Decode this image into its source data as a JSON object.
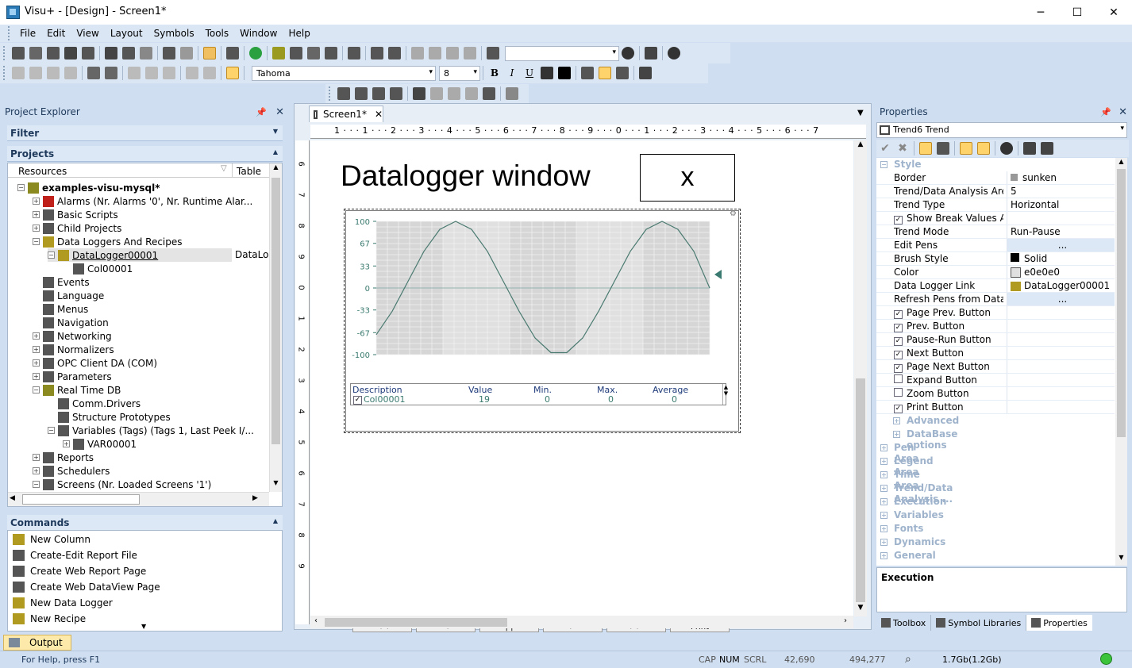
{
  "window": {
    "title": "Visu+ - [Design] - Screen1*",
    "minimize": "─",
    "maximize": "☐",
    "close": "✕"
  },
  "menu": [
    "File",
    "Edit",
    "View",
    "Layout",
    "Symbols",
    "Tools",
    "Window",
    "Help"
  ],
  "format_toolbar": {
    "font": "Tahoma",
    "size": "8"
  },
  "project_explorer": {
    "title": "Project Explorer",
    "filter_label": "Filter",
    "projects_label": "Projects",
    "columns": {
      "resources": "Resources",
      "table": "Table"
    },
    "tree": [
      {
        "label": "examples-visu-mysql*",
        "table": "",
        "icon": "gear-icon"
      },
      {
        "label": "Alarms (Nr. Alarms '0', Nr. Runtime Alar...",
        "table": "",
        "icon": "alarm-bell-icon"
      },
      {
        "label": "Basic Scripts",
        "table": "",
        "icon": "script-icon"
      },
      {
        "label": "Child Projects",
        "table": "",
        "icon": "child-projects-icon"
      },
      {
        "label": "Data Loggers And Recipes",
        "table": "",
        "icon": "database-icon"
      },
      {
        "label": "DataLogger00001",
        "table": "DataLo",
        "icon": "datalogger-icon"
      },
      {
        "label": "Col00001",
        "table": "",
        "icon": "column-icon"
      },
      {
        "label": "Events",
        "table": "",
        "icon": "events-icon"
      },
      {
        "label": "Language",
        "table": "",
        "icon": "language-icon"
      },
      {
        "label": "Menus",
        "table": "",
        "icon": "menu-icon"
      },
      {
        "label": "Navigation",
        "table": "",
        "icon": "navigation-icon"
      },
      {
        "label": "Networking",
        "table": "",
        "icon": "networking-icon"
      },
      {
        "label": "Normalizers",
        "table": "",
        "icon": "normalizer-icon"
      },
      {
        "label": "OPC Client DA (COM)",
        "table": "",
        "icon": "opc-icon"
      },
      {
        "label": "Parameters",
        "table": "",
        "icon": "parameters-icon"
      },
      {
        "label": "Real Time DB",
        "table": "",
        "icon": "gear-icon"
      },
      {
        "label": "Comm.Drivers",
        "table": "",
        "icon": "driver-icon"
      },
      {
        "label": "Structure Prototypes",
        "table": "",
        "icon": "structure-icon"
      },
      {
        "label": "Variables (Tags) (Tags 1, Last Peek I/...",
        "table": "",
        "icon": "variables-icon"
      },
      {
        "label": "VAR00001",
        "table": "",
        "icon": "variable-icon"
      },
      {
        "label": "Reports",
        "table": "",
        "icon": "report-icon"
      },
      {
        "label": "Schedulers",
        "table": "",
        "icon": "scheduler-icon"
      },
      {
        "label": "Screens (Nr. Loaded Screens '1')",
        "table": "",
        "icon": "screen-icon"
      }
    ],
    "commands_label": "Commands",
    "commands": [
      "New Column",
      "Create-Edit Report File",
      "Create Web Report Page",
      "Create Web DataView Page",
      "New Data Logger",
      "New Recipe"
    ]
  },
  "editor": {
    "tab": "Screen1*",
    "ruler_h": "1 · · · 1 · · · 2 · · · 3 · · · 4 · · · 5 · · · 6 · · · 7 · · · 8 · · · 9 · · · 0 · · · 1 · · · 2 · · · 3 · · · 4 · · · 5 · · · 6 · · · 7",
    "ruler_v": [
      "6",
      "7",
      "8",
      "9",
      "0",
      "1",
      "2",
      "3",
      "4",
      "5",
      "6",
      "7",
      "8",
      "9"
    ],
    "heading": "Datalogger window",
    "button_text": "x",
    "trend": {
      "y_ticks": [
        "100",
        "67",
        "33",
        "0",
        "-33",
        "-67",
        "-100"
      ],
      "legend_headers": {
        "description": "Description",
        "value": "Value",
        "min": "Min.",
        "max": "Max.",
        "average": "Average"
      },
      "legend_row": {
        "description": "Col00001",
        "value": "19",
        "min": "0",
        "max": "0",
        "average": "0"
      },
      "buttons": [
        "<<",
        "<",
        "| |",
        ">",
        ">>",
        "Print"
      ]
    }
  },
  "chart_data": {
    "type": "line",
    "title": "",
    "xlabel": "",
    "ylabel": "",
    "ylim": [
      -100,
      100
    ],
    "yticks": [
      100,
      67,
      33,
      0,
      -33,
      -67,
      -100
    ],
    "series": [
      {
        "values": [
          -70,
          -35,
          10,
          55,
          88,
          100,
          88,
          55,
          10,
          -35,
          -75,
          -97,
          -97,
          -75,
          -35,
          10,
          55,
          88,
          100,
          88,
          55,
          0
        ]
      }
    ]
  },
  "properties": {
    "title": "Properties",
    "object": "Trend6 Trend",
    "style_label": "Style",
    "rows": [
      {
        "name": "Border",
        "value": "sunken",
        "check": null
      },
      {
        "name": "Trend/Data Analysis Area...",
        "value": "5",
        "check": null
      },
      {
        "name": "Trend Type",
        "value": "Horizontal",
        "check": null
      },
      {
        "name": "Show Break Values Ar...",
        "value": "",
        "check": true
      },
      {
        "name": "Trend Mode",
        "value": "Run-Pause",
        "check": null
      },
      {
        "name": "Edit Pens",
        "value": "...",
        "check": null
      },
      {
        "name": "Brush Style",
        "value": "Solid",
        "check": null
      },
      {
        "name": "Color",
        "value": "e0e0e0",
        "check": null
      },
      {
        "name": "Data Logger Link",
        "value": "DataLogger00001",
        "check": null
      },
      {
        "name": "Refresh Pens from Data L...",
        "value": "...",
        "check": null
      },
      {
        "name": "Page Prev. Button",
        "value": "",
        "check": true
      },
      {
        "name": "Prev. Button",
        "value": "",
        "check": true
      },
      {
        "name": "Pause-Run Button",
        "value": "",
        "check": true
      },
      {
        "name": "Next Button",
        "value": "",
        "check": true
      },
      {
        "name": "Page Next Button",
        "value": "",
        "check": true
      },
      {
        "name": "Expand Button",
        "value": "",
        "check": false
      },
      {
        "name": "Zoom Button",
        "value": "",
        "check": false
      },
      {
        "name": "Print Button",
        "value": "",
        "check": true
      }
    ],
    "subcategories": [
      "Advanced",
      "DataBase options"
    ],
    "categories": [
      "Pen Area",
      "Legend Area",
      "Time Area",
      "Trend/Data Analysis ...",
      "Execution",
      "Variables",
      "Fonts",
      "Dynamics",
      "General"
    ],
    "description_title": "Execution",
    "bottom_tabs": [
      "Toolbox",
      "Symbol Libraries",
      "Properties"
    ]
  },
  "output_tab": "Output",
  "status": {
    "help": "For Help, press F1",
    "cap": "CAP",
    "num": "NUM",
    "scrl": "SCRL",
    "pos": "42,690",
    "size": "494,277",
    "memory": "1.7Gb(1.2Gb)"
  }
}
